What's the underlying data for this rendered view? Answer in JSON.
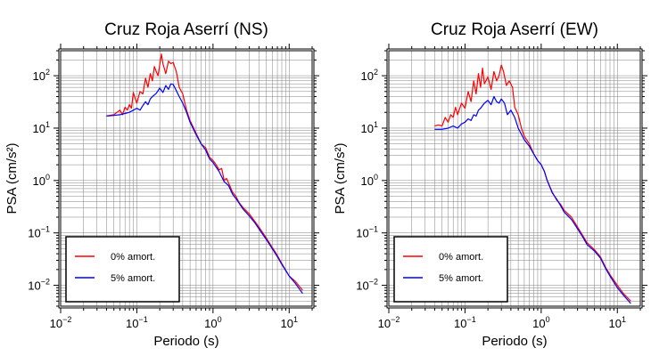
{
  "chart_data": [
    {
      "type": "line",
      "title": "Cruz Roja Aserrí (NS)",
      "xlabel": "Periodo (s)",
      "ylabel": "PSA (cm/s²)",
      "xscale": "log",
      "yscale": "log",
      "xlim": [
        0.01,
        20
      ],
      "ylim": [
        0.004,
        300
      ],
      "x_ticks": [
        0.01,
        0.1,
        1,
        10
      ],
      "y_ticks": [
        0.01,
        0.1,
        1,
        10,
        100
      ],
      "grid": true,
      "legend_position": "bottom-left",
      "series": [
        {
          "name": "0% amort.",
          "color": "#ff0000",
          "x": [
            0.04,
            0.05,
            0.055,
            0.06,
            0.065,
            0.07,
            0.075,
            0.08,
            0.085,
            0.09,
            0.1,
            0.11,
            0.12,
            0.13,
            0.14,
            0.15,
            0.16,
            0.17,
            0.18,
            0.19,
            0.2,
            0.21,
            0.22,
            0.24,
            0.26,
            0.28,
            0.3,
            0.33,
            0.36,
            0.4,
            0.45,
            0.5,
            0.6,
            0.7,
            0.8,
            0.9,
            1.0,
            1.1,
            1.2,
            1.3,
            1.4,
            1.5,
            1.6,
            1.8,
            2.0,
            2.2,
            2.5,
            3.0,
            3.5,
            4.0,
            5.0,
            6.0,
            7.0,
            8.0,
            10.0,
            12.0,
            15.0
          ],
          "y": [
            17,
            18,
            20,
            22,
            18,
            25,
            22,
            28,
            24,
            48,
            30,
            50,
            45,
            90,
            60,
            110,
            80,
            150,
            120,
            100,
            160,
            260,
            170,
            110,
            190,
            170,
            180,
            120,
            60,
            45,
            22,
            14,
            8,
            5,
            4.2,
            2.8,
            2.4,
            2.0,
            1.6,
            1.7,
            1.0,
            1.1,
            0.9,
            0.6,
            0.5,
            0.38,
            0.3,
            0.23,
            0.17,
            0.13,
            0.08,
            0.053,
            0.037,
            0.026,
            0.015,
            0.012,
            0.008
          ]
        },
        {
          "name": "5% amort.",
          "color": "#0000ff",
          "x": [
            0.04,
            0.05,
            0.06,
            0.07,
            0.08,
            0.09,
            0.1,
            0.11,
            0.12,
            0.13,
            0.14,
            0.15,
            0.16,
            0.18,
            0.2,
            0.22,
            0.24,
            0.26,
            0.28,
            0.3,
            0.33,
            0.36,
            0.4,
            0.45,
            0.5,
            0.6,
            0.7,
            0.8,
            0.9,
            1.0,
            1.1,
            1.2,
            1.4,
            1.6,
            1.8,
            2.0,
            2.5,
            3.0,
            3.5,
            4.0,
            5.0,
            6.0,
            7.0,
            8.0,
            10.0,
            12.0,
            15.0
          ],
          "y": [
            17,
            17.5,
            18,
            19,
            20,
            22,
            24,
            22,
            27,
            32,
            28,
            36,
            40,
            46,
            58,
            48,
            65,
            55,
            70,
            68,
            52,
            40,
            30,
            20,
            13,
            7.5,
            5,
            3.8,
            2.6,
            2.2,
            1.8,
            1.5,
            0.95,
            0.8,
            0.55,
            0.45,
            0.28,
            0.21,
            0.16,
            0.12,
            0.075,
            0.05,
            0.035,
            0.025,
            0.015,
            0.011,
            0.007
          ]
        }
      ]
    },
    {
      "type": "line",
      "title": "Cruz Roja Aserrí (EW)",
      "xlabel": "Periodo (s)",
      "ylabel": "PSA (cm/s²)",
      "xscale": "log",
      "yscale": "log",
      "xlim": [
        0.01,
        20
      ],
      "ylim": [
        0.004,
        300
      ],
      "x_ticks": [
        0.01,
        0.1,
        1,
        10
      ],
      "y_ticks": [
        0.01,
        0.1,
        1,
        10,
        100
      ],
      "grid": true,
      "legend_position": "bottom-left",
      "series": [
        {
          "name": "0% amort.",
          "color": "#ff0000",
          "x": [
            0.04,
            0.045,
            0.05,
            0.055,
            0.06,
            0.065,
            0.07,
            0.075,
            0.08,
            0.09,
            0.1,
            0.11,
            0.12,
            0.13,
            0.14,
            0.15,
            0.16,
            0.17,
            0.18,
            0.2,
            0.22,
            0.24,
            0.26,
            0.28,
            0.3,
            0.32,
            0.35,
            0.38,
            0.42,
            0.45,
            0.5,
            0.55,
            0.6,
            0.7,
            0.8,
            0.9,
            1.0,
            1.1,
            1.2,
            1.4,
            1.6,
            1.8,
            2.0,
            2.5,
            3.0,
            3.5,
            4.0,
            5.0,
            6.0,
            7.0,
            8.0,
            10.0,
            12.0,
            15.0
          ],
          "y": [
            11,
            11.5,
            11,
            16,
            13,
            18,
            16,
            25,
            18,
            30,
            24,
            50,
            32,
            80,
            45,
            110,
            60,
            140,
            70,
            95,
            55,
            120,
            80,
            100,
            160,
            120,
            65,
            80,
            60,
            25,
            18,
            10,
            7,
            5,
            3.2,
            2.4,
            2.0,
            1.5,
            1.0,
            0.6,
            0.42,
            0.35,
            0.27,
            0.2,
            0.13,
            0.09,
            0.065,
            0.048,
            0.035,
            0.022,
            0.016,
            0.01,
            0.007,
            0.005
          ]
        },
        {
          "name": "5% amort.",
          "color": "#0000ff",
          "x": [
            0.04,
            0.05,
            0.06,
            0.07,
            0.08,
            0.09,
            0.1,
            0.11,
            0.12,
            0.13,
            0.14,
            0.15,
            0.16,
            0.18,
            0.2,
            0.22,
            0.24,
            0.26,
            0.28,
            0.3,
            0.33,
            0.36,
            0.4,
            0.45,
            0.5,
            0.6,
            0.7,
            0.8,
            0.9,
            1.0,
            1.1,
            1.2,
            1.4,
            1.6,
            1.8,
            2.0,
            2.5,
            3.0,
            3.5,
            4.0,
            5.0,
            6.0,
            7.0,
            8.0,
            10.0,
            12.0,
            15.0
          ],
          "y": [
            9.5,
            9.5,
            10,
            11,
            10,
            12,
            13,
            15,
            14,
            18,
            17,
            22,
            24,
            30,
            34,
            28,
            40,
            32,
            30,
            36,
            30,
            18,
            22,
            16,
            10,
            6,
            4.5,
            3.2,
            2.4,
            2.0,
            1.5,
            1.0,
            0.58,
            0.44,
            0.33,
            0.25,
            0.18,
            0.12,
            0.085,
            0.06,
            0.045,
            0.033,
            0.021,
            0.015,
            0.009,
            0.0065,
            0.0045
          ]
        }
      ]
    }
  ]
}
